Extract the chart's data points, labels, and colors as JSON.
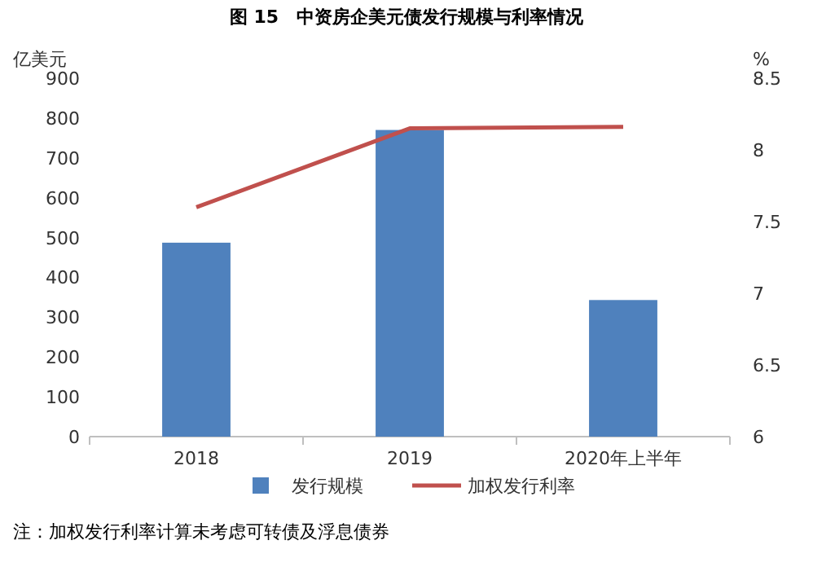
{
  "chart_data": {
    "type": "bar",
    "title": "图 15　中资房企美元债发行规模与利率情况",
    "ylabel": "亿美元",
    "y2label": "%",
    "categories": [
      "2018",
      "2019",
      "2020年上半年"
    ],
    "series": [
      {
        "name": "发行规模",
        "color": "#4f81bd",
        "values": [
          487,
          770,
          343
        ]
      },
      {
        "name": "加权发行利率",
        "type": "line",
        "axis": "y2",
        "color": "#c0504d",
        "values": [
          7.6,
          8.15,
          8.16
        ]
      }
    ],
    "ylim": [
      0,
      900
    ],
    "yticks": [
      0,
      100,
      200,
      300,
      400,
      500,
      600,
      700,
      800,
      900
    ],
    "y2lim": [
      6,
      8.5
    ],
    "y2ticks": [
      6,
      6.5,
      7,
      7.5,
      8,
      8.5
    ],
    "legend": "bottom",
    "grid": false,
    "marker": "none",
    "line_style": "solid",
    "annotations": [
      "注：加权发行利率计算未考虑可转债及浮息债券"
    ]
  }
}
